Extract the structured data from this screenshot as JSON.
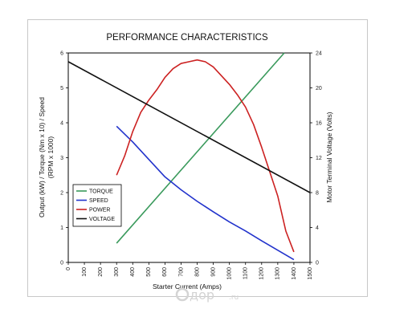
{
  "chart_data": {
    "type": "line",
    "title": "PERFORMANCE CHARACTERISTICS",
    "xlabel": "Starter Current (Amps)",
    "ylabel_left_line1": "Output (kW) / Torque (Nm x 10) / Speed",
    "ylabel_left_line2": "(RPM x 1000)",
    "ylabel_right": "Motor Terminal Voltage (Volts)",
    "xlim": [
      0,
      1500
    ],
    "ylim": [
      0,
      6
    ],
    "y2lim": [
      0,
      24
    ],
    "xticks": [
      "0",
      "100",
      "200",
      "300",
      "400",
      "500",
      "600",
      "700",
      "800",
      "900",
      "1000",
      "1100",
      "1200",
      "1300",
      "1400",
      "1500"
    ],
    "yticks": [
      "0",
      "1",
      "2",
      "3",
      "4",
      "5",
      "6"
    ],
    "y2ticks": [
      "0",
      "4",
      "8",
      "12",
      "16",
      "20",
      "24"
    ],
    "grid": false,
    "legend_position": "lower-left",
    "series": [
      {
        "name": "TORQUE",
        "color": "#3a9a5c",
        "axis": "left",
        "x": [
          300,
          1340
        ],
        "y": [
          0.55,
          6.0
        ]
      },
      {
        "name": "SPEED",
        "color": "#2233cc",
        "axis": "left",
        "x": [
          300,
          400,
          500,
          600,
          700,
          800,
          900,
          1000,
          1100,
          1200,
          1300,
          1400
        ],
        "y": [
          3.9,
          3.45,
          2.95,
          2.45,
          2.08,
          1.75,
          1.45,
          1.16,
          0.9,
          0.62,
          0.35,
          0.08
        ]
      },
      {
        "name": "POWER",
        "color": "#cc2222",
        "axis": "left",
        "x": [
          300,
          350,
          400,
          450,
          500,
          550,
          600,
          650,
          700,
          750,
          800,
          850,
          900,
          950,
          1000,
          1050,
          1100,
          1150,
          1200,
          1250,
          1300,
          1350,
          1400
        ],
        "y": [
          2.5,
          3.05,
          3.75,
          4.3,
          4.65,
          4.95,
          5.3,
          5.55,
          5.7,
          5.75,
          5.8,
          5.75,
          5.6,
          5.35,
          5.1,
          4.8,
          4.45,
          3.95,
          3.3,
          2.6,
          1.9,
          0.9,
          0.3
        ]
      },
      {
        "name": "VOLTAGE",
        "color": "#111111",
        "axis": "right",
        "x": [
          0,
          1500
        ],
        "y": [
          23.0,
          8.0
        ]
      }
    ]
  },
  "watermark": {
    "text": "дор",
    "suffix": ".ru"
  }
}
